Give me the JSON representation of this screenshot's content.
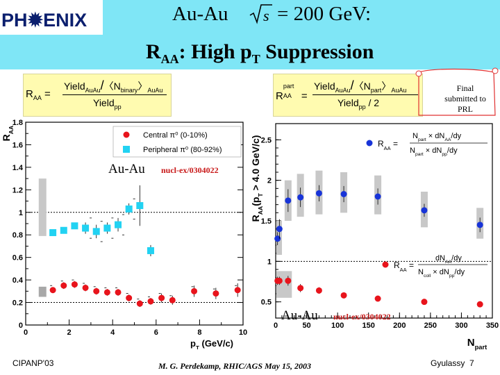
{
  "header": {
    "logo_text": "PH✹ENIX",
    "title_line1_prefix": "Au-Au",
    "title_line1_energy": "= 200 GeV:",
    "title_line2_main": "R",
    "title_line2_sub": "AA",
    "title_line2_rest": ": High p",
    "title_line2_sub2": "T",
    "title_line2_end": " Suppression"
  },
  "note": {
    "text": "Final submitted to PRL"
  },
  "formula_left": {
    "lhs": "R",
    "lhs_sub": "AA",
    "num": "Yield",
    "num_sub": "AuAu",
    "ncoll": "〈N",
    "ncoll_sub": "binary",
    "ncoll_end": "〉",
    "ncoll_sub2": "AuAu",
    "den": "Yield",
    "den_sub": "pp"
  },
  "formula_right": {
    "lhs": "R",
    "lhs_sup": "part",
    "lhs_sub": "AA",
    "num": "Yield",
    "num_sub": "AuAu",
    "npart": "〈N",
    "npart_sub": "part",
    "npart_end": "〉",
    "npart_sub2": "AuAu",
    "den": "Yield",
    "den_sub": "pp",
    "den_div": " / 2"
  },
  "colors": {
    "central": "#e8141c",
    "peripheral": "#22d2f2",
    "npart_blue": "#1834d8",
    "band": "#c8c8c8",
    "header_bg": "#7fe6f6",
    "formula_bg": "#fffbb0"
  },
  "chart_data": [
    {
      "type": "scatter",
      "ylabel": "RAA",
      "xlabel": "pT (GeV/c)",
      "xlim": [
        0,
        10
      ],
      "ylim": [
        0,
        1.8
      ],
      "x_ticks": [
        "0",
        "2",
        "4",
        "6",
        "8",
        "10"
      ],
      "y_ticks": [
        "0",
        "0.2",
        "0.4",
        "0.6",
        "0.8",
        "1",
        "1.2",
        "1.4",
        "1.6",
        "1.8"
      ],
      "annotation": "Au-Au",
      "annotation_ref": "nucl-ex/0304022",
      "legend_position": "top-right",
      "series": [
        {
          "name": "Central π⁰ (0-10%)",
          "marker": "circle",
          "x": [
            1.25,
            1.75,
            2.25,
            2.75,
            3.25,
            3.75,
            4.25,
            4.75,
            5.25,
            5.75,
            6.25,
            6.75,
            7.75,
            8.75,
            9.75
          ],
          "y": [
            0.31,
            0.35,
            0.36,
            0.33,
            0.3,
            0.29,
            0.29,
            0.24,
            0.19,
            0.21,
            0.24,
            0.22,
            0.3,
            0.28,
            0.31
          ]
        },
        {
          "name": "Peripheral π⁰ (80-92%)",
          "marker": "square",
          "x": [
            1.25,
            1.75,
            2.25,
            2.75,
            3.25,
            3.75,
            4.25,
            4.75,
            5.25,
            5.75
          ],
          "y": [
            0.82,
            0.84,
            0.88,
            0.86,
            0.83,
            0.86,
            0.89,
            1.03,
            1.06,
            0.66
          ]
        }
      ]
    },
    {
      "type": "scatter",
      "ylabel": "RAA(pT > 4.0 GeV/c)",
      "xlabel": "Npart",
      "xlim": [
        0,
        350
      ],
      "ylim": [
        0.3,
        2.7
      ],
      "x_ticks": [
        "0",
        "50",
        "100",
        "150",
        "200",
        "250",
        "300",
        "350"
      ],
      "y_ticks": [
        "0.5",
        "1",
        "1.5",
        "2",
        "2.5"
      ],
      "annotation": "Au-Au",
      "annotation_ref": "nucl-ex/0304022",
      "legend_upper": {
        "lhs": "R",
        "lhs_sup": "part",
        "lhs_sub": "AA",
        "eq": "=",
        "n1": "N",
        "n1_sup": "pp",
        "n1_sub": "part",
        "mul": "×",
        "t1": "dN",
        "t1_sup": "inv. π⁰",
        "t1_sub": "AA",
        "t1_end": "/dy",
        "n2": "N",
        "n2_sup": "AuAu",
        "n2_sub": "part",
        "t2": "dN",
        "t2_sup": "inv. π⁰",
        "t2_sub": "pp",
        "t2_end": "/dy"
      },
      "legend_lower": {
        "lhs": "R",
        "lhs_sub": "AA",
        "eq": "=",
        "t1": "dN",
        "t1_sup": "inv. π⁰",
        "t1_sub": "AA",
        "t1_end": "/dy",
        "n2": "N",
        "n2_sup": "AuAu",
        "n2_sub": "coll",
        "mul": "×",
        "t2": "dN",
        "t2_sup": "inv. π⁰",
        "t2_sub": "pp",
        "t2_end": "/dy"
      },
      "series": [
        {
          "name": "R_AA^part",
          "marker": "circle",
          "x": [
            3,
            6,
            20,
            40,
            70,
            110,
            165,
            240,
            330
          ],
          "y": [
            1.28,
            1.4,
            1.75,
            1.79,
            1.84,
            1.83,
            1.8,
            1.63,
            1.45
          ]
        },
        {
          "name": "R_AA",
          "marker": "circle",
          "x": [
            3,
            6,
            20,
            40,
            70,
            110,
            165,
            240,
            330
          ],
          "y": [
            0.76,
            0.76,
            0.76,
            0.67,
            0.64,
            0.58,
            0.54,
            0.5,
            0.47
          ]
        }
      ]
    }
  ],
  "footer": {
    "left": "CIPANP'03",
    "center": "M. G. Perdekamp, RHIC/AGS May 15, 2003",
    "right_name": "Gyulassy",
    "page": "7"
  }
}
